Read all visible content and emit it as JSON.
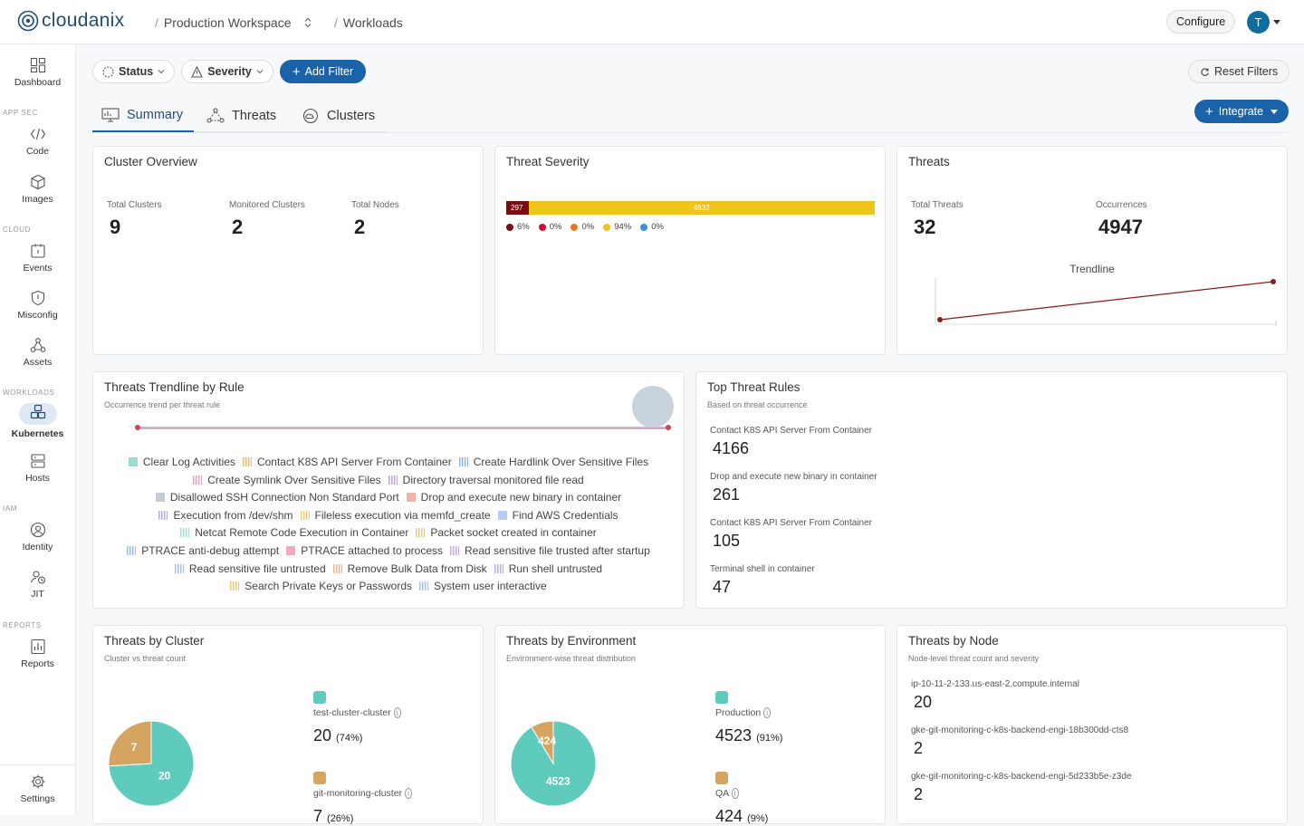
{
  "app": {
    "name": "cloudanix"
  },
  "breadcrumb": {
    "workspace": "Production Workspace",
    "page": "Workloads"
  },
  "header": {
    "configure_label": "Configure",
    "avatar_initial": "T"
  },
  "sidebar": {
    "dashboard": "Dashboard",
    "sections": {
      "appsec": "APP SEC",
      "cloud": "CLOUD",
      "workloads": "WORKLOADS",
      "iam": "IAM",
      "reports": "REPORTS"
    },
    "code": "Code",
    "images": "Images",
    "events": "Events",
    "misconfig": "Misconfig",
    "assets": "Assets",
    "kubernetes": "Kubernetes",
    "hosts": "Hosts",
    "identity": "Identity",
    "jit": "JIT",
    "reports": "Reports",
    "settings": "Settings"
  },
  "filters": {
    "status": "Status",
    "severity": "Severity",
    "add_filter": "Add Filter",
    "reset": "Reset Filters",
    "integrate": "Integrate"
  },
  "tabs": {
    "summary": "Summary",
    "threats": "Threats",
    "clusters": "Clusters"
  },
  "cluster_overview": {
    "title": "Cluster Overview",
    "total_clusters_label": "Total Clusters",
    "total_clusters": "9",
    "monitored_label": "Monitored Clusters",
    "monitored": "2",
    "nodes_label": "Total Nodes",
    "nodes": "2"
  },
  "threat_severity": {
    "title": "Threat Severity",
    "segments": [
      {
        "value": 297,
        "color": "#7a0c12"
      },
      {
        "value": 4632,
        "color": "#f0c419"
      }
    ],
    "seg1_label": "297",
    "seg2_label": "4632",
    "legend": [
      {
        "pct": "6%",
        "color": "#7a0c12"
      },
      {
        "pct": "0%",
        "color": "#c8102e"
      },
      {
        "pct": "0%",
        "color": "#e07b24"
      },
      {
        "pct": "94%",
        "color": "#f0c419"
      },
      {
        "pct": "0%",
        "color": "#3b8fd4"
      }
    ]
  },
  "threats_card": {
    "title": "Threats",
    "total_label": "Total Threats",
    "total": "32",
    "occurrences_label": "Occurrences",
    "occurrences": "4947",
    "trend_title": "Trendline"
  },
  "trend_by_rule": {
    "title": "Threats Trendline by Rule",
    "subtitle": "Occurrence trend per threat rule",
    "rows": [
      [
        {
          "label": "Clear Log Activities",
          "color": "#9fdccf",
          "hatch": false
        },
        {
          "label": "Contact K8S API Server From Container",
          "color": "#e6b96b",
          "hatch": true
        },
        {
          "label": "Create Hardlink Over Sensitive Files",
          "color": "#8fb3e0",
          "hatch": true
        }
      ],
      [
        {
          "label": "Create Symlink Over Sensitive Files",
          "color": "#e0a1c4",
          "hatch": true
        },
        {
          "label": "Directory traversal monitored file read",
          "color": "#b9a6e0",
          "hatch": true
        }
      ],
      [
        {
          "label": "Disallowed SSH Connection Non Standard Port",
          "color": "#c6cbd4",
          "hatch": false
        },
        {
          "label": "Drop and execute new binary in container",
          "color": "#f0b3a8",
          "hatch": false
        }
      ],
      [
        {
          "label": "Execution from /dev/shm",
          "color": "#b3aee6",
          "hatch": true
        },
        {
          "label": "Fileless execution via memfd_create",
          "color": "#f0d26b",
          "hatch": true
        },
        {
          "label": "Find AWS Credentials",
          "color": "#b6cff0",
          "hatch": false
        }
      ],
      [
        {
          "label": "Netcat Remote Code Execution in Container",
          "color": "#a5e0d6",
          "hatch": true
        },
        {
          "label": "Packet socket created in container",
          "color": "#e8c48a",
          "hatch": true
        }
      ],
      [
        {
          "label": "PTRACE anti-debug attempt",
          "color": "#9dbbe6",
          "hatch": true
        },
        {
          "label": "PTRACE attached to process",
          "color": "#f2a9bf",
          "hatch": false
        },
        {
          "label": "Read sensitive file trusted after startup",
          "color": "#c6a9e6",
          "hatch": true
        }
      ],
      [
        {
          "label": "Read sensitive file untrusted",
          "color": "#a9c1ea",
          "hatch": true
        },
        {
          "label": "Remove Bulk Data from Disk",
          "color": "#f0b48c",
          "hatch": true
        },
        {
          "label": "Run shell untrusted",
          "color": "#b7acec",
          "hatch": true
        }
      ],
      [
        {
          "label": "Search Private Keys or Passwords",
          "color": "#f0c878",
          "hatch": true
        },
        {
          "label": "System user interactive",
          "color": "#a6c4ec",
          "hatch": true
        }
      ]
    ]
  },
  "top_rules": {
    "title": "Top Threat Rules",
    "subtitle": "Based on threat occurrence",
    "items": [
      {
        "label": "Contact K8S API Server From Container",
        "value": "4166"
      },
      {
        "label": "Drop and execute new binary in container",
        "value": "261"
      },
      {
        "label": "Contact K8S API Server From Container",
        "value": "105"
      },
      {
        "label": "Terminal shell in container",
        "value": "47"
      }
    ]
  },
  "by_cluster": {
    "title": "Threats by Cluster",
    "subtitle": "Cluster vs threat count",
    "slices": [
      {
        "value": 20,
        "color": "#5ecbbd"
      },
      {
        "value": 7,
        "color": "#d6a461"
      }
    ],
    "slice_labels": [
      "20",
      "7"
    ],
    "entries": [
      {
        "name": "test-cluster-cluster",
        "value": "20",
        "pct": "(74%)",
        "color": "#5ecbbd"
      },
      {
        "name": "git-monitoring-cluster",
        "value": "7",
        "pct": "(26%)",
        "color": "#d6a461"
      }
    ]
  },
  "by_env": {
    "title": "Threats by Environment",
    "subtitle": "Environment-wise threat distribution",
    "slices": [
      {
        "value": 4523,
        "color": "#5ecbbd"
      },
      {
        "value": 424,
        "color": "#d6a461"
      }
    ],
    "slice_labels": [
      "4523",
      "424"
    ],
    "entries": [
      {
        "name": "Production",
        "value": "4523",
        "pct": "(91%)",
        "color": "#5ecbbd"
      },
      {
        "name": "QA",
        "value": "424",
        "pct": "(9%)",
        "color": "#d6a461"
      }
    ]
  },
  "by_node": {
    "title": "Threats by Node",
    "subtitle": "Node-level threat count and severity",
    "items": [
      {
        "label": "ip-10-11-2-133.us-east-2.compute.internal",
        "value": "20"
      },
      {
        "label": "gke-git-monitoring-c-k8s-backend-engi-18b300dd-cts8",
        "value": "2"
      },
      {
        "label": "gke-git-monitoring-c-k8s-backend-engi-5d233b5e-z3de",
        "value": "2"
      }
    ]
  },
  "chart_data": [
    {
      "type": "bar",
      "title": "Threat Severity",
      "series": [
        {
          "values": [
            297,
            0,
            0,
            4632,
            0
          ]
        }
      ],
      "categories": [
        "",
        "",
        "",
        "",
        ""
      ]
    },
    {
      "type": "line",
      "title": "Trendline",
      "y": [
        0,
        4947
      ]
    },
    {
      "type": "pie",
      "title": "Threats by Cluster",
      "categories": [
        "test-cluster-cluster",
        "git-monitoring-cluster"
      ],
      "values": [
        20,
        7
      ]
    },
    {
      "type": "pie",
      "title": "Threats by Environment",
      "categories": [
        "Production",
        "QA"
      ],
      "values": [
        4523,
        424
      ]
    }
  ]
}
